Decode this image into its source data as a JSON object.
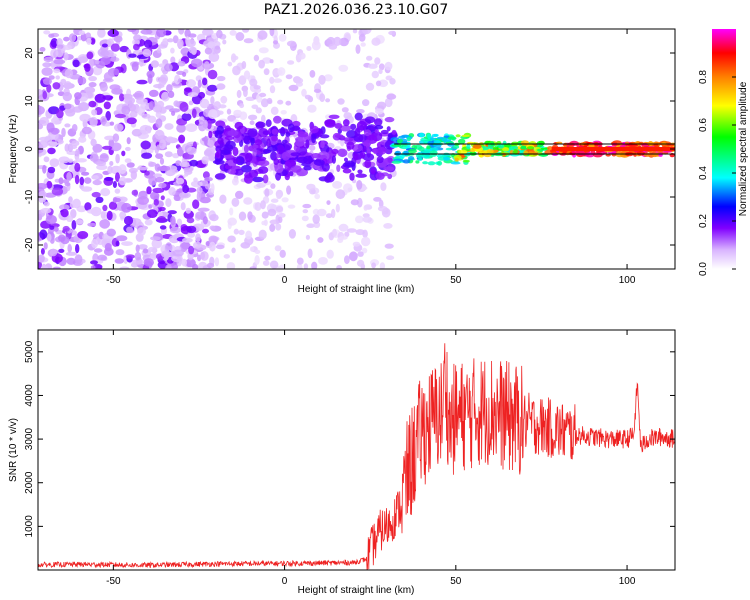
{
  "figure_title": "PAZ1.2026.036.23.10.G07",
  "chart_data": [
    {
      "type": "heatmap",
      "title": "PAZ1.2026.036.23.10.G07",
      "xlabel": "Height of straight line (km)",
      "ylabel": "Frequency (Hz)",
      "xlim": [
        -72,
        114
      ],
      "ylim": [
        -25,
        25
      ],
      "x_ticks": [
        -50,
        0,
        50,
        100
      ],
      "y_ticks": [
        -20,
        -10,
        0,
        10,
        20
      ],
      "colorbar": {
        "label": "Normalized spectral amplitude",
        "range": [
          0,
          1
        ],
        "ticks": [
          0.0,
          0.2,
          0.4,
          0.6,
          0.8
        ],
        "colors": [
          "#ffffff",
          "#d9b3ff",
          "#8000ff",
          "#0000ff",
          "#00ffff",
          "#00ff00",
          "#ffff00",
          "#ff8000",
          "#ff0000",
          "#ff00ff"
        ]
      },
      "description_regions": [
        {
          "x_range": [
            -72,
            -20
          ],
          "amplitude": "scattered 0.1-0.2"
        },
        {
          "x_range": [
            -20,
            32
          ],
          "amplitude": "0.15-0.2 near 0 Hz"
        },
        {
          "x_range": [
            32,
            114
          ],
          "amplitude": "0.4-1.0 concentrated at 0 Hz"
        }
      ]
    },
    {
      "type": "line",
      "xlabel": "Height of straight line (km)",
      "ylabel": "SNR (10 * v/v)",
      "xlim": [
        -72,
        114
      ],
      "ylim": [
        0,
        5500
      ],
      "x_ticks": [
        -50,
        0,
        50,
        100
      ],
      "y_ticks": [
        1000,
        2000,
        3000,
        4000,
        5000
      ],
      "series": [
        {
          "name": "SNR",
          "color": "#ee2222",
          "x": [
            -72,
            -60,
            -40,
            -20,
            0,
            10,
            20,
            24,
            26,
            28,
            30,
            32,
            34,
            36,
            38,
            40,
            42,
            44,
            46,
            47,
            48,
            50,
            55,
            60,
            65,
            70,
            75,
            80,
            85,
            90,
            95,
            100,
            102,
            103,
            104,
            106,
            110,
            114
          ],
          "values": [
            120,
            130,
            110,
            140,
            150,
            160,
            170,
            250,
            600,
            900,
            1000,
            1200,
            1500,
            2200,
            2700,
            3200,
            3300,
            3500,
            3600,
            4500,
            3300,
            3500,
            3600,
            3700,
            3500,
            3400,
            3300,
            3200,
            3100,
            3050,
            3000,
            3000,
            3100,
            4300,
            2800,
            3000,
            3050,
            3000
          ]
        }
      ]
    }
  ]
}
